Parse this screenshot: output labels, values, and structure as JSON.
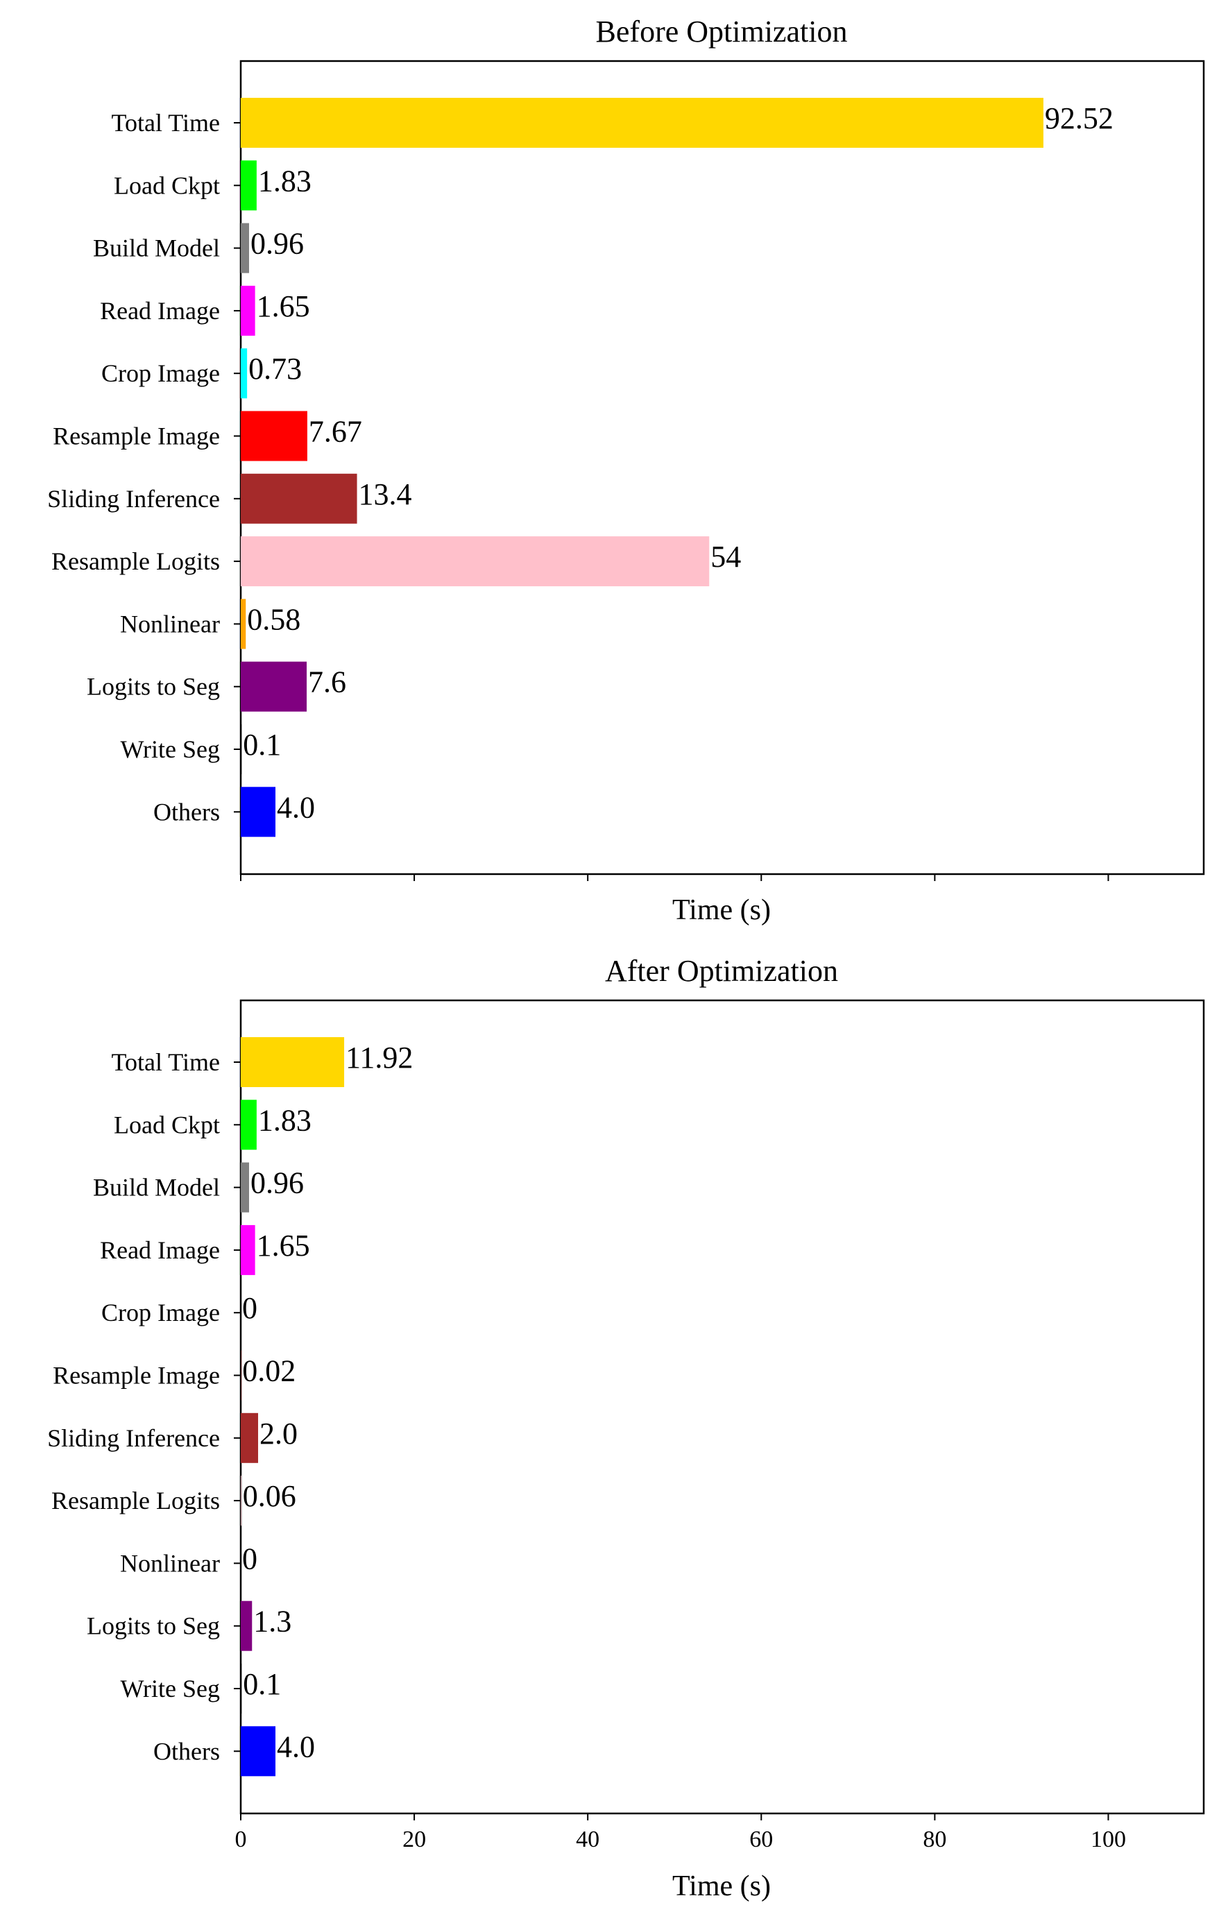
{
  "chart_data": [
    {
      "type": "bar",
      "orientation": "horizontal",
      "title": "Before Optimization",
      "xlabel": "Time (s)",
      "ylabel": "",
      "xlim": [
        0,
        111
      ],
      "xticks": [
        0,
        20,
        40,
        60,
        80,
        100
      ],
      "xtick_labels_shown": false,
      "grid": false,
      "categories": [
        "Total Time",
        "Load Ckpt",
        "Build Model",
        "Read Image",
        "Crop Image",
        "Resample Image",
        "Sliding Inference",
        "Resample Logits",
        "Nonlinear",
        "Logits to Seg",
        "Write Seg",
        "Others"
      ],
      "values": [
        92.52,
        1.83,
        0.96,
        1.65,
        0.73,
        7.67,
        13.4,
        54,
        0.58,
        7.6,
        0.1,
        4.0
      ],
      "value_labels": [
        "92.52",
        "1.83",
        "0.96",
        "1.65",
        "0.73",
        "7.67",
        "13.4",
        "54",
        "0.58",
        "7.6",
        "0.1",
        "4.0"
      ],
      "colors": [
        "#FFD700",
        "#00FF00",
        "#808080",
        "#FF00FF",
        "#00FFFF",
        "#FF0000",
        "#A52A2A",
        "#FFC0CB",
        "#FFA500",
        "#800080",
        "#000000",
        "#0000FF"
      ]
    },
    {
      "type": "bar",
      "orientation": "horizontal",
      "title": "After Optimization",
      "xlabel": "Time (s)",
      "ylabel": "",
      "xlim": [
        0,
        111
      ],
      "xticks": [
        0,
        20,
        40,
        60,
        80,
        100
      ],
      "xtick_labels_shown": true,
      "grid": false,
      "categories": [
        "Total Time",
        "Load Ckpt",
        "Build Model",
        "Read Image",
        "Crop Image",
        "Resample Image",
        "Sliding Inference",
        "Resample Logits",
        "Nonlinear",
        "Logits to Seg",
        "Write Seg",
        "Others"
      ],
      "values": [
        11.92,
        1.83,
        0.96,
        1.65,
        0,
        0.02,
        2.0,
        0.06,
        0,
        1.3,
        0.1,
        4.0
      ],
      "value_labels": [
        "11.92",
        "1.83",
        "0.96",
        "1.65",
        "0",
        "0.02",
        "2.0",
        "0.06",
        "0",
        "1.3",
        "0.1",
        "4.0"
      ],
      "colors": [
        "#FFD700",
        "#00FF00",
        "#808080",
        "#FF00FF",
        "#00FFFF",
        "#FF0000",
        "#A52A2A",
        "#FFC0CB",
        "#FFA500",
        "#800080",
        "#000000",
        "#0000FF"
      ]
    }
  ]
}
